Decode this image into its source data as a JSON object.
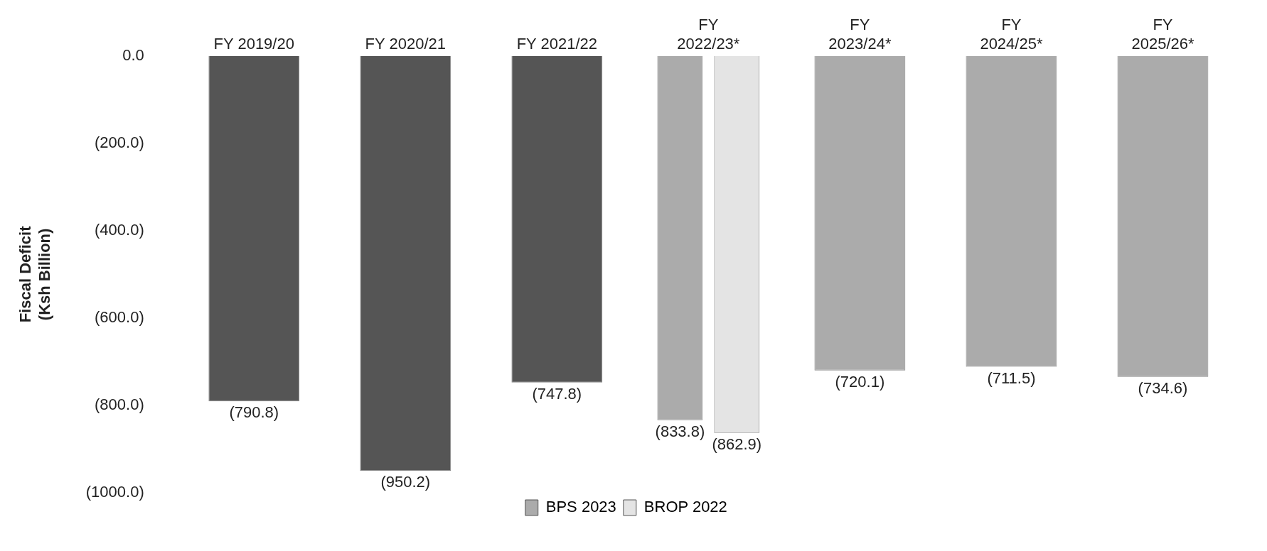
{
  "chart_data": {
    "type": "bar",
    "ylabel": "Fiscal Deficit\n(Ksh Billion)",
    "categories": [
      "FY 2019/20",
      "FY 2020/21",
      "FY 2021/22",
      "FY\n2022/23*",
      "FY\n2023/24*",
      "FY\n2024/25*",
      "FY\n2025/26*"
    ],
    "series": [
      {
        "name": "BPS 2023",
        "color": "#ababab",
        "colors": [
          "#555555",
          "#555555",
          "#555555",
          "#ababab",
          "#ababab",
          "#ababab",
          "#ababab"
        ],
        "values": [
          -790.8,
          -950.2,
          -747.8,
          -833.8,
          -720.1,
          -711.5,
          -734.6
        ],
        "value_labels": [
          "(790.8)",
          "(950.2)",
          "(747.8)",
          "(833.8)",
          "(720.1)",
          "(711.5)",
          "(734.6)"
        ]
      },
      {
        "name": "BROP 2022",
        "color": "#e4e4e4",
        "values": [
          null,
          null,
          null,
          -862.9,
          null,
          null,
          null
        ],
        "value_labels": [
          null,
          null,
          null,
          "(862.9)",
          null,
          null,
          null
        ]
      }
    ],
    "ylim": [
      -1000,
      0
    ],
    "yticks": [
      {
        "value": 0,
        "label": "0.0"
      },
      {
        "value": -200,
        "label": "(200.0)"
      },
      {
        "value": -400,
        "label": "(400.0)"
      },
      {
        "value": -600,
        "label": "(600.0)"
      },
      {
        "value": -800,
        "label": "(800.0)"
      },
      {
        "value": -1000,
        "label": "(1000.0)"
      }
    ],
    "grid": false,
    "legend": "bottom"
  }
}
